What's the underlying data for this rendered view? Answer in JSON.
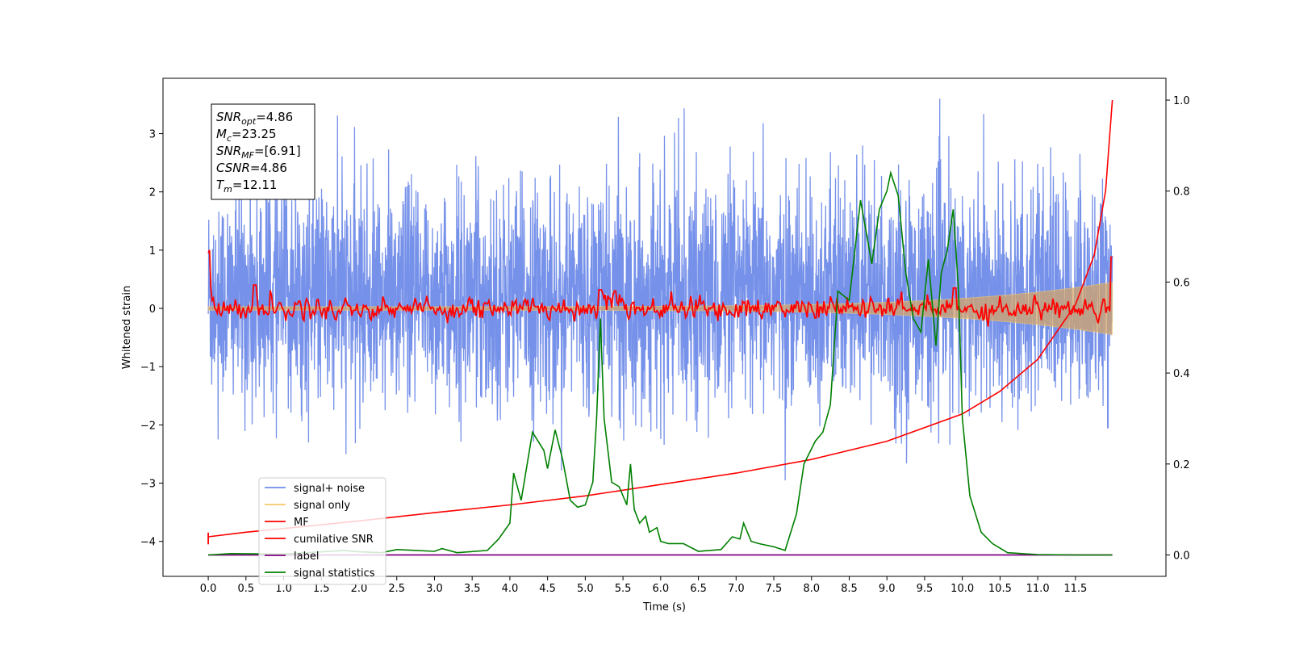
{
  "chart_data": {
    "type": "line",
    "xlabel": "Time (s)",
    "ylabel": "Whitened strain",
    "xlim": [
      -0.6,
      12.7
    ],
    "ylim_left": [
      -4.6,
      3.95
    ],
    "ylim_right": [
      -0.047,
      1.048
    ],
    "x_ticks": [
      "0.0",
      "0.5",
      "1.0",
      "1.5",
      "2.0",
      "2.5",
      "3.0",
      "3.5",
      "4.0",
      "4.5",
      "5.0",
      "5.5",
      "6.0",
      "6.5",
      "7.0",
      "7.5",
      "8.0",
      "8.5",
      "9.0",
      "9.5",
      "10.0",
      "10.5",
      "11.0",
      "11.5"
    ],
    "y_ticks_left": [
      "3",
      "2",
      "1",
      "0",
      "−1",
      "−2",
      "−3",
      "−4"
    ],
    "y_ticks_right": [
      "1.0",
      "0.8",
      "0.6",
      "0.4",
      "0.2",
      "0.0"
    ],
    "stats_box": [
      {
        "main": "SNR",
        "sub": "opt",
        "value": "=4.86"
      },
      {
        "main": "M",
        "sub": "c",
        "value": "=23.25"
      },
      {
        "main": "SNR",
        "sub": "MF",
        "value": "=[6.91]"
      },
      {
        "main": "CSNR",
        "sub": "",
        "value": "=4.86"
      },
      {
        "main": "T",
        "sub": "m",
        "value": "=12.11"
      }
    ],
    "legend": [
      {
        "label": "signal+ noise",
        "color": "#6f8be8"
      },
      {
        "label": "signal only",
        "color": "#f7c96a"
      },
      {
        "label": "MF",
        "color": "#ff0000"
      },
      {
        "label": "cumilative SNR",
        "color": "#ff0000"
      },
      {
        "label": "label",
        "color": "#800080"
      },
      {
        "label": "signal statistics",
        "color": "#008000"
      }
    ],
    "series": [
      {
        "name": "signal+ noise",
        "axis": "left",
        "color": "#6f8be8",
        "x_range": [
          0,
          11.99
        ],
        "envelope_min": -3.3,
        "envelope_max": 3.6,
        "typical_range": [
          -1.8,
          2.2
        ]
      },
      {
        "name": "signal only",
        "axis": "left",
        "color": "#f7c96a",
        "x_range": [
          0,
          11.99
        ],
        "amplitude_start": 0.03,
        "amplitude_end": 0.45
      },
      {
        "name": "MF",
        "axis": "left",
        "color": "#ff0000",
        "x_range": [
          0,
          11.99
        ],
        "start_value": 0.95,
        "typical_range": [
          -0.2,
          0.35
        ],
        "peaks": [
          [
            0.62,
            0.4
          ],
          [
            5.2,
            0.32
          ],
          [
            5.4,
            0.3
          ],
          [
            9.9,
            0.35
          ],
          [
            11.99,
            0.88
          ]
        ]
      },
      {
        "name": "cumilative SNR",
        "axis": "right",
        "color": "#ff0000",
        "x": [
          0.0,
          0.5,
          1.0,
          2.0,
          3.0,
          4.0,
          5.0,
          6.0,
          7.0,
          8.0,
          9.0,
          10.0,
          10.5,
          11.0,
          11.5,
          11.75,
          11.9,
          11.99
        ],
        "y": [
          0.04,
          0.05,
          0.058,
          0.075,
          0.093,
          0.11,
          0.13,
          0.155,
          0.18,
          0.21,
          0.25,
          0.31,
          0.36,
          0.43,
          0.55,
          0.66,
          0.8,
          1.0
        ]
      },
      {
        "name": "label",
        "axis": "right",
        "color": "#800080",
        "x": [
          0.0,
          11.99
        ],
        "y": [
          0.0,
          0.0
        ]
      },
      {
        "name": "signal statistics",
        "axis": "right",
        "color": "#008000",
        "x": [
          0.0,
          0.3,
          1.0,
          1.8,
          2.0,
          2.3,
          2.5,
          3.0,
          3.1,
          3.3,
          3.7,
          3.85,
          4.0,
          4.05,
          4.15,
          4.3,
          4.45,
          4.5,
          4.6,
          4.7,
          4.8,
          4.9,
          5.0,
          5.1,
          5.15,
          5.2,
          5.25,
          5.35,
          5.45,
          5.55,
          5.6,
          5.65,
          5.72,
          5.8,
          5.85,
          5.95,
          6.0,
          6.1,
          6.3,
          6.5,
          6.8,
          6.95,
          7.05,
          7.1,
          7.2,
          7.3,
          7.5,
          7.65,
          7.8,
          7.9,
          8.05,
          8.15,
          8.25,
          8.35,
          8.5,
          8.65,
          8.8,
          8.9,
          9.0,
          9.05,
          9.15,
          9.25,
          9.35,
          9.45,
          9.55,
          9.65,
          9.72,
          9.8,
          9.88,
          9.95,
          10.0,
          10.1,
          10.25,
          10.4,
          10.6,
          11.0,
          11.5,
          11.99
        ],
        "y": [
          0.0,
          0.003,
          0.002,
          0.01,
          0.007,
          0.005,
          0.012,
          0.008,
          0.014,
          0.005,
          0.01,
          0.035,
          0.07,
          0.18,
          0.12,
          0.27,
          0.23,
          0.19,
          0.275,
          0.21,
          0.12,
          0.105,
          0.11,
          0.16,
          0.3,
          0.52,
          0.3,
          0.16,
          0.15,
          0.11,
          0.2,
          0.1,
          0.07,
          0.085,
          0.05,
          0.06,
          0.03,
          0.025,
          0.025,
          0.008,
          0.012,
          0.04,
          0.035,
          0.07,
          0.03,
          0.025,
          0.018,
          0.01,
          0.09,
          0.2,
          0.25,
          0.27,
          0.33,
          0.58,
          0.56,
          0.78,
          0.64,
          0.76,
          0.8,
          0.84,
          0.79,
          0.62,
          0.52,
          0.49,
          0.65,
          0.46,
          0.62,
          0.67,
          0.76,
          0.58,
          0.3,
          0.13,
          0.05,
          0.025,
          0.005,
          0.001,
          0.0,
          0.0
        ]
      }
    ]
  }
}
